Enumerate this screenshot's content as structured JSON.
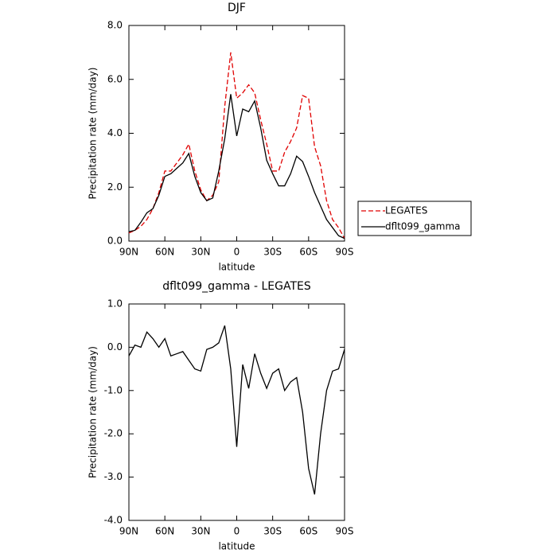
{
  "chart_data": [
    {
      "type": "line",
      "title": "DJF",
      "x_label": "latitude",
      "y_label": "Precipitation rate (mm/day)",
      "x": [
        90,
        85,
        80,
        75,
        70,
        65,
        60,
        55,
        50,
        45,
        40,
        35,
        30,
        25,
        20,
        15,
        10,
        5,
        0,
        -5,
        -10,
        -15,
        -20,
        -25,
        -30,
        -35,
        -40,
        -45,
        -50,
        -55,
        -60,
        -65,
        -70,
        -75,
        -80,
        -85,
        -90
      ],
      "series": [
        {
          "name": "LEGATES",
          "color": "#e00000",
          "dashed": true,
          "values": [
            0.3,
            0.4,
            0.55,
            0.8,
            1.2,
            1.8,
            2.6,
            2.6,
            2.9,
            3.2,
            3.6,
            2.6,
            1.9,
            1.5,
            1.7,
            2.2,
            5.0,
            7.0,
            5.3,
            5.5,
            5.8,
            5.5,
            4.5,
            3.6,
            2.6,
            2.6,
            3.3,
            3.7,
            4.2,
            5.4,
            5.3,
            3.5,
            2.8,
            1.5,
            0.8,
            0.5,
            0.1
          ]
        },
        {
          "name": "dflt099_gamma",
          "color": "#000000",
          "dashed": false,
          "values": [
            0.35,
            0.4,
            0.7,
            1.05,
            1.2,
            1.7,
            2.4,
            2.5,
            2.7,
            2.9,
            3.25,
            2.4,
            1.8,
            1.5,
            1.6,
            2.6,
            3.8,
            5.45,
            3.9,
            4.9,
            4.8,
            5.2,
            4.2,
            3.0,
            2.5,
            2.05,
            2.05,
            2.5,
            3.15,
            2.95,
            2.4,
            1.8,
            1.3,
            0.8,
            0.5,
            0.2,
            0.1
          ]
        }
      ],
      "xlim": [
        90,
        -90
      ],
      "xticks": [
        {
          "value": 90,
          "label": "90N"
        },
        {
          "value": 60,
          "label": "60N"
        },
        {
          "value": 30,
          "label": "30N"
        },
        0,
        {
          "value": -30,
          "label": "30S"
        },
        {
          "value": -60,
          "label": "60S"
        },
        {
          "value": -90,
          "label": "90S"
        }
      ],
      "ylim": [
        0,
        8
      ],
      "yticks": [
        {
          "value": 0,
          "label": "0.0"
        },
        {
          "value": 2,
          "label": "2.0"
        },
        {
          "value": 4,
          "label": "4.0"
        },
        {
          "value": 6,
          "label": "6.0"
        },
        {
          "value": 8,
          "label": "8.0"
        }
      ],
      "legend": "right"
    },
    {
      "type": "line",
      "title": "dflt099_gamma - LEGATES",
      "x_label": "latitude",
      "y_label": "Precipitation rate (mm/day)",
      "x": [
        90,
        85,
        80,
        75,
        70,
        65,
        60,
        55,
        50,
        45,
        40,
        35,
        30,
        25,
        20,
        15,
        10,
        5,
        0,
        -5,
        -10,
        -15,
        -20,
        -25,
        -30,
        -35,
        -40,
        -45,
        -50,
        -55,
        -60,
        -65,
        -70,
        -75,
        -80,
        -85,
        -90
      ],
      "series": [
        {
          "color": "#000000",
          "dashed": false,
          "values": [
            -0.2,
            0.05,
            0.0,
            0.35,
            0.2,
            0.0,
            0.2,
            -0.2,
            -0.15,
            -0.1,
            -0.3,
            -0.5,
            -0.55,
            -0.05,
            0.0,
            0.1,
            0.5,
            -0.5,
            -2.3,
            -0.4,
            -0.95,
            -0.15,
            -0.6,
            -0.95,
            -0.6,
            -0.5,
            -1.0,
            -0.8,
            -0.7,
            -1.5,
            -2.8,
            -3.4,
            -2.0,
            -1.0,
            -0.55,
            -0.5,
            -0.05
          ]
        }
      ],
      "xlim": [
        90,
        -90
      ],
      "xticks": [
        {
          "value": 90,
          "label": "90N"
        },
        {
          "value": 60,
          "label": "60N"
        },
        {
          "value": 30,
          "label": "30N"
        },
        0,
        {
          "value": -30,
          "label": "30S"
        },
        {
          "value": -60,
          "label": "60S"
        },
        {
          "value": -90,
          "label": "90S"
        }
      ],
      "ylim": [
        -4,
        1
      ],
      "yticks": [
        {
          "value": -4,
          "label": "-4.0"
        },
        {
          "value": -3,
          "label": "-3.0"
        },
        {
          "value": -2,
          "label": "-2.0"
        },
        {
          "value": -1,
          "label": "-1.0"
        },
        {
          "value": 0,
          "label": "0.0"
        },
        {
          "value": 1,
          "label": "1.0"
        }
      ]
    }
  ]
}
